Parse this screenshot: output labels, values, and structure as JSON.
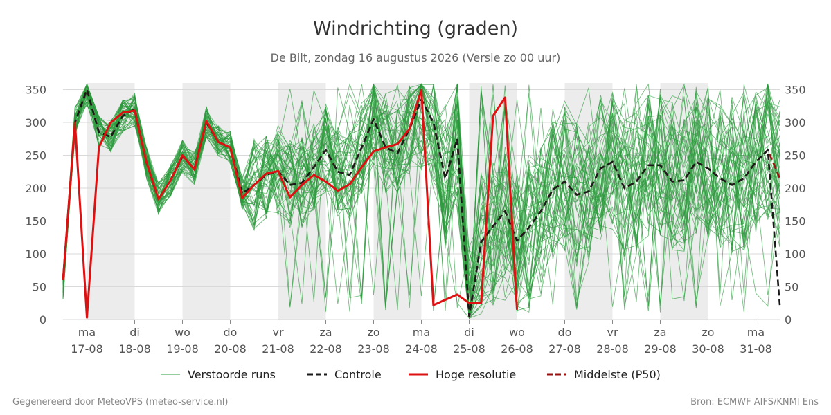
{
  "chart_data": {
    "type": "line",
    "title": "Windrichting (graden)",
    "subtitle": "De Bilt, zondag 16 augustus 2026 (Versie zo 00 uur)",
    "ylim": [
      0,
      360
    ],
    "yticks": [
      0,
      50,
      100,
      150,
      200,
      250,
      300,
      350
    ],
    "x_unit": "days from 2026-08-16 00:00",
    "xlim": [
      0.5,
      15.5
    ],
    "xticks": [
      {
        "x": 1,
        "day": "ma",
        "date": "17-08"
      },
      {
        "x": 2,
        "day": "di",
        "date": "18-08"
      },
      {
        "x": 3,
        "day": "wo",
        "date": "19-08"
      },
      {
        "x": 4,
        "day": "do",
        "date": "20-08"
      },
      {
        "x": 5,
        "day": "vr",
        "date": "21-08"
      },
      {
        "x": 6,
        "day": "za",
        "date": "22-08"
      },
      {
        "x": 7,
        "day": "zo",
        "date": "23-08"
      },
      {
        "x": 8,
        "day": "ma",
        "date": "24-08"
      },
      {
        "x": 9,
        "day": "di",
        "date": "25-08"
      },
      {
        "x": 10,
        "day": "wo",
        "date": "26-08"
      },
      {
        "x": 11,
        "day": "do",
        "date": "27-08"
      },
      {
        "x": 12,
        "day": "vr",
        "date": "28-08"
      },
      {
        "x": 13,
        "day": "za",
        "date": "29-08"
      },
      {
        "x": 14,
        "day": "zo",
        "date": "30-08"
      },
      {
        "x": 15,
        "day": "ma",
        "date": "31-08"
      }
    ],
    "shaded_days": [
      [
        1,
        2
      ],
      [
        3,
        4
      ],
      [
        5,
        6
      ],
      [
        7,
        8
      ],
      [
        9,
        10
      ],
      [
        11,
        12
      ],
      [
        13,
        14
      ]
    ],
    "grid": true,
    "legend_position": "bottom",
    "series": [
      {
        "name": "Controle",
        "color": "#1a1a1a",
        "style": "dashed",
        "x": [
          0.5,
          0.75,
          1.0,
          1.25,
          1.5,
          1.75,
          2.0,
          2.25,
          2.5,
          2.75,
          3.0,
          3.25,
          3.5,
          3.75,
          4.0,
          4.25,
          4.5,
          4.75,
          5.0,
          5.25,
          5.5,
          5.75,
          6.0,
          6.25,
          6.5,
          6.75,
          7.0,
          7.25,
          7.5,
          7.75,
          8.0,
          8.25,
          8.5,
          8.75,
          9.0,
          9.25,
          9.5,
          9.75,
          10.0,
          10.25,
          10.5,
          10.75,
          11.0,
          11.25,
          11.5,
          11.75,
          12.0,
          12.25,
          12.5,
          12.75,
          13.0,
          13.25,
          13.5,
          13.75,
          14.0,
          14.25,
          14.5,
          14.75,
          15.0,
          15.25,
          15.5
        ],
        "values": [
          60,
          300,
          350,
          285,
          278,
          310,
          320,
          238,
          183,
          212,
          248,
          230,
          300,
          270,
          262,
          192,
          205,
          220,
          226,
          205,
          208,
          232,
          258,
          225,
          220,
          262,
          305,
          262,
          253,
          290,
          335,
          300,
          215,
          275,
          5,
          118,
          142,
          165,
          120,
          140,
          165,
          198,
          210,
          190,
          195,
          230,
          240,
          200,
          210,
          235,
          235,
          210,
          212,
          240,
          230,
          215,
          205,
          215,
          240,
          258,
          22
        ]
      },
      {
        "name": "Hoge resolutie",
        "color": "#dd1111",
        "style": "solid",
        "x": [
          0.5,
          0.75,
          1.0,
          1.25,
          1.5,
          1.75,
          2.0,
          2.25,
          2.5,
          2.75,
          3.0,
          3.25,
          3.5,
          3.75,
          4.0,
          4.25,
          4.5,
          4.75,
          5.0,
          5.25,
          5.5,
          5.75,
          6.0,
          6.25,
          6.5,
          6.75,
          7.0,
          7.25,
          7.5,
          7.75,
          8.0,
          8.25,
          8.5,
          8.75,
          9.0,
          9.25,
          9.5,
          9.75,
          10.0
        ],
        "values": [
          60,
          300,
          3,
          262,
          300,
          315,
          318,
          238,
          183,
          212,
          250,
          228,
          302,
          270,
          262,
          185,
          205,
          222,
          226,
          186,
          205,
          220,
          210,
          196,
          206,
          232,
          256,
          262,
          267,
          290,
          350,
          22,
          30,
          38,
          25,
          25,
          310,
          338,
          15
        ]
      },
      {
        "name": "Middelste (P50)",
        "color": "#991111",
        "style": "dashed",
        "x": [
          0.5,
          0.75,
          1.0,
          1.25,
          1.5,
          1.75,
          2.0,
          2.25,
          2.5,
          2.75,
          3.0,
          3.25,
          3.5,
          3.75,
          4.0,
          4.25,
          4.5,
          4.75,
          5.0,
          5.25,
          5.5,
          5.75,
          6.0,
          6.25,
          6.5,
          6.75,
          7.0,
          7.25,
          7.5,
          7.75,
          8.0,
          8.25,
          8.5,
          8.75,
          9.0,
          9.25,
          9.5,
          9.75,
          10.0,
          10.25,
          10.5,
          10.75,
          11.0,
          11.25,
          11.5,
          11.75,
          12.0,
          12.25,
          12.5,
          12.75,
          13.0,
          13.25,
          13.5,
          13.75,
          14.0,
          14.25,
          14.5,
          14.75,
          15.0,
          15.25,
          15.5
        ],
        "values": [
          60,
          300,
          350,
          285,
          278,
          310,
          320,
          238,
          183,
          212,
          248,
          230,
          300,
          270,
          262,
          192,
          205,
          220,
          226,
          205,
          208,
          232,
          258,
          225,
          220,
          262,
          305,
          262,
          253,
          290,
          335,
          300,
          215,
          275,
          5,
          118,
          142,
          165,
          120,
          140,
          165,
          198,
          210,
          190,
          195,
          230,
          240,
          200,
          210,
          235,
          235,
          210,
          212,
          240,
          230,
          215,
          205,
          215,
          240,
          258,
          215
        ]
      },
      {
        "name": "Verstoorde runs",
        "color": "#2a9a3a",
        "style": "thin",
        "count": 50
      }
    ]
  },
  "legend": {
    "items": [
      {
        "label": "Verstoorde runs",
        "color": "#2a9a3a",
        "style": "thin"
      },
      {
        "label": "Controle",
        "color": "#1a1a1a",
        "style": "dashed"
      },
      {
        "label": "Hoge resolutie",
        "color": "#dd1111",
        "style": "solid"
      },
      {
        "label": "Middelste (P50)",
        "color": "#991111",
        "style": "dashed"
      }
    ]
  },
  "footer": {
    "left": "Gegenereerd door MeteoVPS (meteo-service.nl)",
    "right": "Bron: ECMWF AIFS/KNMI Ens"
  }
}
